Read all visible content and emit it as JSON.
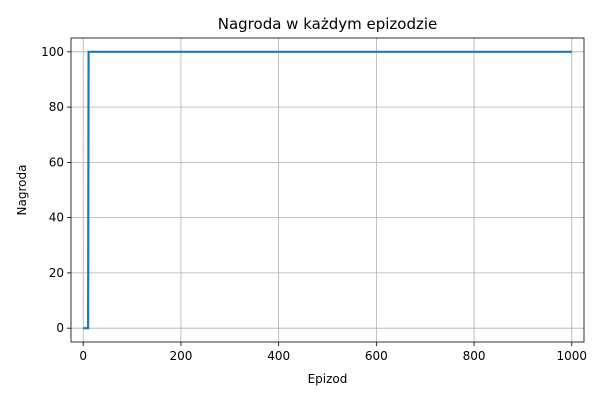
{
  "chart_data": {
    "type": "line",
    "title": "Nagroda w każdym epizodzie",
    "xlabel": "Epizod",
    "ylabel": "Nagroda",
    "xlim": [
      -25,
      1025
    ],
    "ylim": [
      -5,
      105
    ],
    "xticks": [
      0,
      200,
      400,
      600,
      800,
      1000
    ],
    "yticks": [
      0,
      20,
      40,
      60,
      80,
      100
    ],
    "grid": true,
    "series": [
      {
        "color": "#1f77b4",
        "x": [
          0,
          10,
          11,
          1000
        ],
        "y": [
          0,
          0,
          100,
          100
        ]
      }
    ]
  }
}
